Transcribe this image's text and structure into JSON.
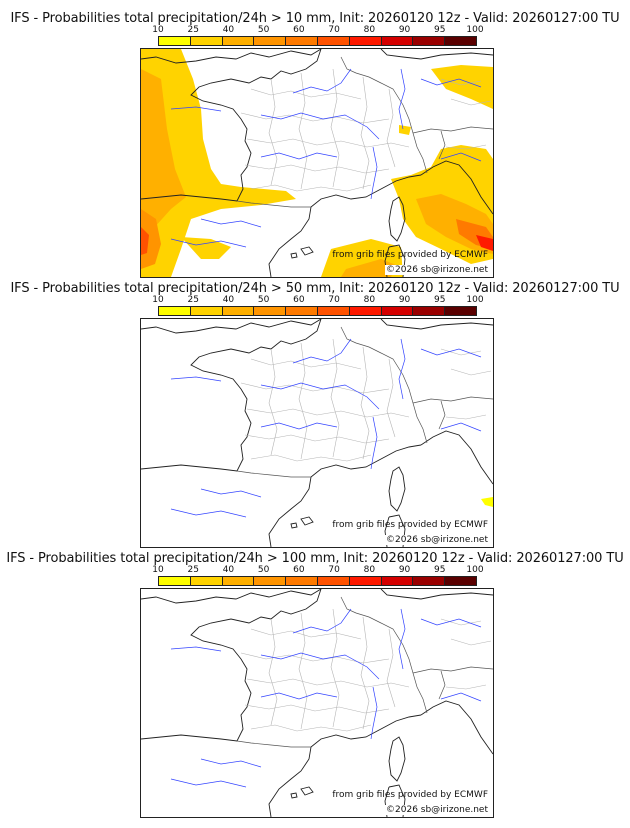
{
  "legend": {
    "ticks": [
      "10",
      "25",
      "40",
      "50",
      "60",
      "70",
      "80",
      "90",
      "95",
      "100"
    ],
    "colors": [
      "#ffff00",
      "#ffd300",
      "#ffb000",
      "#ff9400",
      "#ff7a00",
      "#ff5200",
      "#ff1a00",
      "#d40000",
      "#9a0000",
      "#5a0000"
    ]
  },
  "panels": [
    {
      "title": "IFS - Probabilities total precipitation/24h > 10 mm, Init: 20260120 12z - Valid: 20260127:00 TU",
      "threshold_mm": 10,
      "credit": "from grib files provided by ECMWF",
      "copyright": "©2026 sb@irizone.net"
    },
    {
      "title": "IFS - Probabilities total precipitation/24h > 50 mm, Init: 20260120 12z - Valid: 20260127:00 TU",
      "threshold_mm": 50,
      "credit": "from grib files provided by ECMWF",
      "copyright": "©2026 sb@irizone.net"
    },
    {
      "title": "IFS - Probabilities total precipitation/24h > 100 mm, Init: 20260120 12z - Valid: 20260127:00 TU",
      "threshold_mm": 100,
      "credit": "from grib files provided by ECMWF",
      "copyright": "©2026 sb@irizone.net"
    }
  ]
}
